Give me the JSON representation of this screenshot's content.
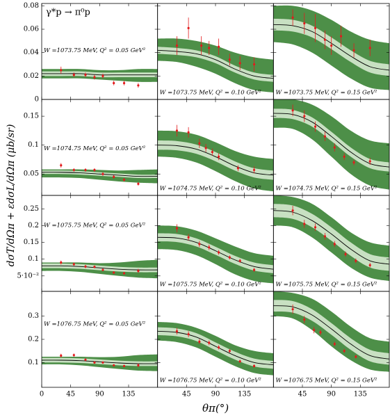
{
  "chart_data": {
    "type": "band",
    "title": "γ*p → π⁰p",
    "y_label": "dσT/dΩπ + εdσL/dΩπ (μb/sr)",
    "x_label": "θπ(°)",
    "xlim": [
      0,
      180
    ],
    "xticks": [
      0,
      45,
      90,
      135
    ],
    "point_color": "#e31a1c",
    "line_color": "#000000",
    "inner_color": "#c8e0c2",
    "outer_color": "#4d8f48",
    "curve_x": [
      0,
      30,
      60,
      90,
      120,
      150,
      180
    ],
    "rows": [
      {
        "ylim": [
          0,
          0.082
        ],
        "yticks": [
          0,
          0.02,
          0.04,
          0.06,
          0.08
        ]
      },
      {
        "ylim": [
          0.013,
          0.179
        ],
        "yticks": [
          0.05,
          0.1,
          0.15
        ]
      },
      {
        "ylim": [
          0.004,
          0.29
        ],
        "yticks": [
          {
            "value": 0.05,
            "label": "5·10⁻²"
          },
          0.1,
          0.15,
          0.2,
          0.25
        ]
      },
      {
        "ylim": [
          -0.007,
          0.407
        ],
        "yticks": [
          0.1,
          0.2,
          0.3
        ]
      }
    ],
    "panels": [
      {
        "annotation": "W =1073.75 MeV, Q² = 0.05 GeV²",
        "points": {
          "x": [
            30,
            50,
            68,
            82,
            95,
            112,
            128,
            150
          ],
          "values": [
            0.025,
            0.021,
            0.021,
            0.019,
            0.02,
            0.014,
            0.014,
            0.012
          ],
          "errors": [
            0.003,
            0.002,
            0.002,
            0.002,
            0.002,
            0.002,
            0.002,
            0.002
          ]
        },
        "curve": {
          "central": [
            0.022,
            0.022,
            0.022,
            0.021,
            0.021,
            0.021,
            0.021
          ],
          "inner_low": [
            0.02,
            0.02,
            0.02,
            0.019,
            0.019,
            0.019,
            0.019
          ],
          "inner_high": [
            0.024,
            0.024,
            0.024,
            0.023,
            0.023,
            0.023,
            0.023
          ],
          "outer_low": [
            0.018,
            0.018,
            0.018,
            0.017,
            0.016,
            0.015,
            0.015
          ],
          "outer_high": [
            0.026,
            0.026,
            0.026,
            0.025,
            0.025,
            0.026,
            0.026
          ]
        }
      },
      {
        "annotation": "W =1073.75 MeV, Q² = 0.10 GeV²",
        "points": {
          "x": [
            30,
            48,
            68,
            80,
            95,
            112,
            128,
            150
          ],
          "values": [
            0.046,
            0.061,
            0.046,
            0.044,
            0.045,
            0.034,
            0.031,
            0.03
          ],
          "errors": [
            0.008,
            0.009,
            0.008,
            0.006,
            0.007,
            0.005,
            0.006,
            0.006
          ]
        },
        "curve": {
          "central": [
            0.042,
            0.041,
            0.039,
            0.034,
            0.026,
            0.02,
            0.018
          ],
          "inner_low": [
            0.039,
            0.038,
            0.036,
            0.031,
            0.023,
            0.017,
            0.015
          ],
          "inner_high": [
            0.045,
            0.044,
            0.042,
            0.037,
            0.029,
            0.023,
            0.021
          ],
          "outer_low": [
            0.033,
            0.032,
            0.028,
            0.022,
            0.014,
            0.008,
            0.006
          ],
          "outer_high": [
            0.052,
            0.052,
            0.05,
            0.046,
            0.04,
            0.036,
            0.034
          ]
        }
      },
      {
        "annotation": "W =1073.75 MeV, Q² = 0.15 GeV²",
        "points": {
          "x": [
            30,
            48,
            65,
            80,
            90,
            105,
            125,
            150
          ],
          "values": [
            0.07,
            0.065,
            0.061,
            0.051,
            0.046,
            0.054,
            0.042,
            0.044
          ],
          "errors": [
            0.007,
            0.009,
            0.012,
            0.008,
            0.008,
            0.009,
            0.006,
            0.007
          ]
        },
        "curve": {
          "central": [
            0.064,
            0.063,
            0.058,
            0.048,
            0.037,
            0.028,
            0.025
          ],
          "inner_low": [
            0.059,
            0.058,
            0.053,
            0.043,
            0.032,
            0.023,
            0.02
          ],
          "inner_high": [
            0.069,
            0.068,
            0.063,
            0.053,
            0.042,
            0.033,
            0.03
          ],
          "outer_low": [
            0.049,
            0.047,
            0.04,
            0.029,
            0.018,
            0.01,
            0.008
          ],
          "outer_high": [
            0.08,
            0.08,
            0.076,
            0.068,
            0.058,
            0.051,
            0.048
          ]
        }
      },
      {
        "annotation": "W =1074.75 MeV, Q² = 0.05 GeV²",
        "points": {
          "x": [
            30,
            50,
            68,
            82,
            95,
            112,
            128,
            150
          ],
          "values": [
            0.065,
            0.057,
            0.057,
            0.057,
            0.05,
            0.045,
            0.04,
            0.033
          ],
          "errors": [
            0.004,
            0.003,
            0.003,
            0.003,
            0.003,
            0.003,
            0.003,
            0.003
          ]
        },
        "curve": {
          "central": [
            0.053,
            0.053,
            0.052,
            0.05,
            0.048,
            0.046,
            0.046
          ],
          "inner_low": [
            0.05,
            0.05,
            0.049,
            0.047,
            0.045,
            0.043,
            0.043
          ],
          "inner_high": [
            0.056,
            0.056,
            0.055,
            0.053,
            0.051,
            0.049,
            0.049
          ],
          "outer_low": [
            0.044,
            0.044,
            0.043,
            0.04,
            0.037,
            0.035,
            0.034
          ],
          "outer_high": [
            0.058,
            0.058,
            0.058,
            0.057,
            0.056,
            0.057,
            0.058
          ]
        }
      },
      {
        "annotation": "W =1074.75 MeV, Q² = 0.10 GeV²",
        "points": {
          "x": [
            30,
            48,
            65,
            75,
            85,
            95,
            125,
            150
          ],
          "values": [
            0.125,
            0.122,
            0.103,
            0.095,
            0.088,
            0.08,
            0.06,
            0.057
          ],
          "errors": [
            0.01,
            0.009,
            0.008,
            0.007,
            0.006,
            0.006,
            0.005,
            0.006
          ]
        },
        "curve": {
          "central": [
            0.1,
            0.099,
            0.093,
            0.08,
            0.064,
            0.052,
            0.048
          ],
          "inner_low": [
            0.092,
            0.091,
            0.085,
            0.072,
            0.056,
            0.044,
            0.04
          ],
          "inner_high": [
            0.108,
            0.107,
            0.101,
            0.088,
            0.072,
            0.06,
            0.056
          ],
          "outer_low": [
            0.08,
            0.078,
            0.07,
            0.055,
            0.038,
            0.025,
            0.02
          ],
          "outer_high": [
            0.125,
            0.124,
            0.118,
            0.105,
            0.09,
            0.08,
            0.076
          ]
        }
      },
      {
        "annotation": "W =1074.75 MeV, Q² = 0.15 GeV²",
        "points": {
          "x": [
            30,
            48,
            65,
            80,
            95,
            110,
            125,
            150
          ],
          "values": [
            0.16,
            0.15,
            0.132,
            0.115,
            0.096,
            0.08,
            0.07,
            0.072
          ],
          "errors": [
            0.01,
            0.01,
            0.009,
            0.008,
            0.007,
            0.006,
            0.005,
            0.006
          ]
        },
        "curve": {
          "central": [
            0.155,
            0.153,
            0.14,
            0.115,
            0.088,
            0.068,
            0.062
          ],
          "inner_low": [
            0.147,
            0.145,
            0.132,
            0.107,
            0.08,
            0.06,
            0.054
          ],
          "inner_high": [
            0.163,
            0.161,
            0.148,
            0.123,
            0.096,
            0.076,
            0.07
          ],
          "outer_low": [
            0.13,
            0.128,
            0.11,
            0.08,
            0.05,
            0.03,
            0.023
          ],
          "outer_high": [
            0.179,
            0.179,
            0.17,
            0.15,
            0.125,
            0.108,
            0.103
          ]
        }
      },
      {
        "annotation": "W =1075.75 MeV, Q² = 0.05 GeV²",
        "points": {
          "x": [
            30,
            50,
            68,
            82,
            95,
            112,
            128,
            150
          ],
          "values": [
            0.09,
            0.085,
            0.078,
            0.077,
            0.068,
            0.06,
            0.058,
            0.065
          ],
          "errors": [
            0.006,
            0.005,
            0.005,
            0.004,
            0.004,
            0.004,
            0.004,
            0.006
          ]
        },
        "curve": {
          "central": [
            0.08,
            0.08,
            0.078,
            0.074,
            0.07,
            0.068,
            0.068
          ],
          "inner_low": [
            0.073,
            0.073,
            0.071,
            0.067,
            0.063,
            0.061,
            0.061
          ],
          "inner_high": [
            0.087,
            0.087,
            0.085,
            0.081,
            0.077,
            0.075,
            0.075
          ],
          "outer_low": [
            0.065,
            0.065,
            0.062,
            0.056,
            0.05,
            0.045,
            0.043
          ],
          "outer_high": [
            0.09,
            0.09,
            0.09,
            0.088,
            0.09,
            0.095,
            0.098
          ]
        }
      },
      {
        "annotation": "W =1075.75 MeV, Q² = 0.10 GeV²",
        "points": {
          "x": [
            30,
            48,
            65,
            80,
            95,
            112,
            128,
            150
          ],
          "values": [
            0.192,
            0.165,
            0.145,
            0.135,
            0.12,
            0.105,
            0.095,
            0.068
          ],
          "errors": [
            0.012,
            0.01,
            0.009,
            0.008,
            0.007,
            0.006,
            0.006,
            0.006
          ]
        },
        "curve": {
          "central": [
            0.165,
            0.163,
            0.15,
            0.125,
            0.098,
            0.078,
            0.07
          ],
          "inner_low": [
            0.153,
            0.151,
            0.138,
            0.113,
            0.086,
            0.066,
            0.058
          ],
          "inner_high": [
            0.177,
            0.175,
            0.162,
            0.137,
            0.11,
            0.09,
            0.082
          ],
          "outer_low": [
            0.13,
            0.127,
            0.112,
            0.085,
            0.055,
            0.035,
            0.028
          ],
          "outer_high": [
            0.2,
            0.198,
            0.185,
            0.162,
            0.138,
            0.118,
            0.11
          ]
        }
      },
      {
        "annotation": "W =1075.75 MeV, Q² = 0.15 GeV²",
        "points": {
          "x": [
            30,
            48,
            65,
            80,
            95,
            112,
            128,
            150
          ],
          "values": [
            0.245,
            0.205,
            0.195,
            0.168,
            0.145,
            0.115,
            0.095,
            0.082
          ],
          "errors": [
            0.014,
            0.012,
            0.011,
            0.01,
            0.009,
            0.008,
            0.007,
            0.007
          ]
        },
        "curve": {
          "central": [
            0.245,
            0.24,
            0.215,
            0.175,
            0.13,
            0.095,
            0.085
          ],
          "inner_low": [
            0.225,
            0.22,
            0.195,
            0.155,
            0.11,
            0.075,
            0.065
          ],
          "inner_high": [
            0.265,
            0.26,
            0.235,
            0.195,
            0.15,
            0.115,
            0.105
          ],
          "outer_low": [
            0.2,
            0.195,
            0.165,
            0.12,
            0.075,
            0.045,
            0.035
          ],
          "outer_high": [
            0.29,
            0.285,
            0.265,
            0.225,
            0.18,
            0.15,
            0.14
          ]
        }
      },
      {
        "annotation": "W =1076.75 MeV, Q² = 0.05 GeV²",
        "points": {
          "x": [
            30,
            50,
            68,
            82,
            95,
            112,
            128,
            150
          ],
          "values": [
            0.13,
            0.132,
            0.112,
            0.1,
            0.1,
            0.088,
            0.085,
            0.088
          ],
          "errors": [
            0.008,
            0.007,
            0.006,
            0.005,
            0.005,
            0.005,
            0.005,
            0.008
          ]
        },
        "curve": {
          "central": [
            0.11,
            0.11,
            0.108,
            0.103,
            0.098,
            0.095,
            0.095
          ],
          "inner_low": [
            0.1,
            0.1,
            0.098,
            0.093,
            0.088,
            0.085,
            0.085
          ],
          "inner_high": [
            0.12,
            0.12,
            0.118,
            0.113,
            0.108,
            0.105,
            0.105
          ],
          "outer_low": [
            0.092,
            0.092,
            0.088,
            0.08,
            0.072,
            0.065,
            0.063
          ],
          "outer_high": [
            0.125,
            0.125,
            0.125,
            0.123,
            0.125,
            0.132,
            0.135
          ]
        }
      },
      {
        "annotation": "W =1076.75 MeV, Q² = 0.10 GeV²",
        "points": {
          "x": [
            30,
            48,
            65,
            80,
            95,
            112,
            128,
            150
          ],
          "values": [
            0.235,
            0.222,
            0.19,
            0.185,
            0.165,
            0.15,
            0.105,
            0.085
          ],
          "errors": [
            0.014,
            0.013,
            0.011,
            0.01,
            0.009,
            0.008,
            0.007,
            0.007
          ]
        },
        "curve": {
          "central": [
            0.235,
            0.23,
            0.21,
            0.17,
            0.13,
            0.1,
            0.09
          ],
          "inner_low": [
            0.218,
            0.213,
            0.193,
            0.153,
            0.113,
            0.083,
            0.073
          ],
          "inner_high": [
            0.252,
            0.247,
            0.227,
            0.187,
            0.147,
            0.117,
            0.107
          ],
          "outer_low": [
            0.195,
            0.188,
            0.165,
            0.125,
            0.085,
            0.055,
            0.045
          ],
          "outer_high": [
            0.275,
            0.27,
            0.25,
            0.215,
            0.175,
            0.15,
            0.14
          ]
        }
      },
      {
        "annotation": "W =1076.75 MeV, Q² = 0.15 GeV²",
        "points": {
          "x": [
            30,
            48,
            63,
            73,
            95,
            110,
            128
          ],
          "values": [
            0.33,
            0.285,
            0.24,
            0.23,
            0.18,
            0.15,
            0.125
          ],
          "errors": [
            0.02,
            0.016,
            0.014,
            0.012,
            0.01,
            0.009,
            0.008
          ]
        },
        "curve": {
          "central": [
            0.345,
            0.34,
            0.305,
            0.245,
            0.18,
            0.13,
            0.115
          ],
          "inner_low": [
            0.32,
            0.315,
            0.28,
            0.22,
            0.155,
            0.105,
            0.09
          ],
          "inner_high": [
            0.37,
            0.365,
            0.33,
            0.27,
            0.205,
            0.155,
            0.14
          ],
          "outer_low": [
            0.3,
            0.29,
            0.24,
            0.17,
            0.11,
            0.07,
            0.06
          ],
          "outer_high": [
            0.407,
            0.4,
            0.375,
            0.32,
            0.255,
            0.205,
            0.19
          ]
        }
      }
    ]
  }
}
